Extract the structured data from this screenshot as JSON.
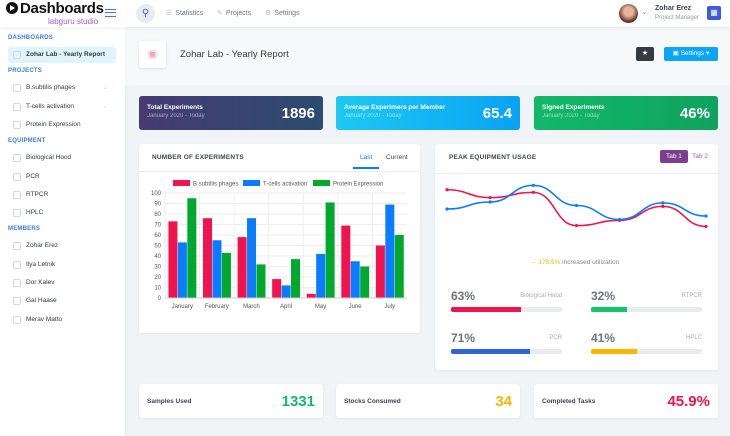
{
  "header": {
    "logo": "Dashboards",
    "logo_sub": "labguru studio",
    "nav": [
      "Statistics",
      "Projects",
      "Settings"
    ],
    "user_name": "Zohar Erez",
    "user_role": "Project Manager"
  },
  "sidebar": {
    "sections": [
      {
        "title": "DASHBOARDS",
        "items": [
          {
            "label": "Zohar Lab - Yearly Report",
            "active": true
          }
        ]
      },
      {
        "title": "PROJECTS",
        "items": [
          {
            "label": "B.subtilis phages",
            "chevron": true
          },
          {
            "label": "T-cells activation",
            "chevron": true
          },
          {
            "label": "Protein Expression"
          }
        ]
      },
      {
        "title": "EQUIPMENT",
        "items": [
          {
            "label": "Biological Hood"
          },
          {
            "label": "PCR"
          },
          {
            "label": "RTPCR"
          },
          {
            "label": "HPLC"
          }
        ]
      },
      {
        "title": "MEMBERS",
        "items": [
          {
            "label": "Zohar Erez"
          },
          {
            "label": "Ilya Letnik"
          },
          {
            "label": "Dor Kalev"
          },
          {
            "label": "Gal Haase"
          },
          {
            "label": "Merav Matto"
          }
        ]
      }
    ]
  },
  "page": {
    "title": "Zohar Lab - Yearly Report",
    "settings_label": "Settings"
  },
  "kpis": [
    {
      "label": "Total Experiments",
      "sub": "January 2020 - Today",
      "value": "1896"
    },
    {
      "label": "Average Experimers per Member",
      "sub": "January 2020 - Today",
      "value": "65.4"
    },
    {
      "label": "Signed Experiments",
      "sub": "January 2020 - Today",
      "value": "46%"
    }
  ],
  "experiments": {
    "title": "NUMBER OF EXPERIMENTS",
    "tabs": [
      "Last",
      "Current"
    ]
  },
  "chart_data": [
    {
      "type": "bar",
      "title": "NUMBER OF EXPERIMENTS",
      "categories": [
        "January",
        "February",
        "March",
        "April",
        "May",
        "June",
        "July"
      ],
      "ylim": [
        0,
        100
      ],
      "yticks": [
        0,
        10,
        20,
        30,
        40,
        50,
        60,
        70,
        80,
        90,
        100
      ],
      "legend": "top",
      "series": [
        {
          "name": "B.subtilis phages",
          "color": "#f0134d",
          "values": [
            73,
            76,
            58,
            18,
            4,
            69,
            50
          ]
        },
        {
          "name": "T-cells activation",
          "color": "#0a7cff",
          "values": [
            53,
            55,
            76,
            12,
            42,
            35,
            89
          ]
        },
        {
          "name": "Protein Expression",
          "color": "#00a82d",
          "values": [
            95,
            43,
            32,
            37,
            91,
            30,
            60
          ]
        }
      ]
    },
    {
      "type": "line",
      "title": "PEAK EQUIPMENT USAGE",
      "ylim": [
        0,
        80
      ],
      "x": [
        1,
        2,
        3,
        4,
        5,
        6,
        7
      ],
      "series": [
        {
          "name": "red",
          "color": "#f0134d",
          "values": [
            62,
            53,
            59,
            21,
            27,
            43,
            20
          ]
        },
        {
          "name": "blue",
          "color": "#0a7cff",
          "values": [
            40,
            48,
            67,
            44,
            28,
            47,
            32
          ]
        }
      ]
    }
  ],
  "peak": {
    "title": "PEAK EQUIPMENT USAGE",
    "tabs": [
      "Tab 1",
      "Tab 2"
    ],
    "delta": "175.5%",
    "delta_text": "increased utilization",
    "bars": [
      {
        "pct": "63%",
        "value": 63,
        "label": "Biological Hood",
        "color": "#f0134d"
      },
      {
        "pct": "32%",
        "value": 32,
        "label": "RTPCR",
        "color": "#13c56b"
      },
      {
        "pct": "71%",
        "value": 71,
        "label": "PCR",
        "color": "#3063d8"
      },
      {
        "pct": "41%",
        "value": 41,
        "label": "HPLC",
        "color": "#ffb400"
      }
    ]
  },
  "bottom": [
    {
      "label": "Samples Used",
      "value": "1331",
      "color": "#13b96b"
    },
    {
      "label": "Stocks Consumed",
      "value": "34",
      "color": "#f7b500"
    },
    {
      "label": "Completed Tasks",
      "value": "45.9%",
      "color": "#f0134d"
    }
  ]
}
